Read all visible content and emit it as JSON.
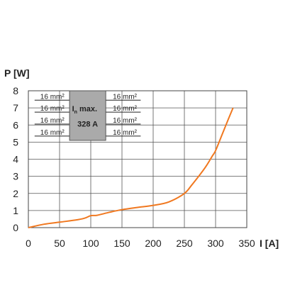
{
  "chart_data": {
    "type": "line",
    "title": "",
    "xlabel": "I [A]",
    "ylabel": "P [W]",
    "xlim": [
      0,
      350
    ],
    "ylim": [
      0,
      8
    ],
    "x_ticks": [
      0,
      50,
      100,
      150,
      200,
      250,
      300,
      350
    ],
    "y_ticks": [
      0,
      1,
      2,
      3,
      4,
      5,
      6,
      7,
      8
    ],
    "grid": true,
    "line_color": "#f07820",
    "series": [
      {
        "x": [
          0,
          25,
          50,
          75,
          90,
          100,
          110,
          130,
          150,
          175,
          200,
          225,
          250,
          262,
          275,
          285,
          295,
          300,
          310,
          320,
          328
        ],
        "y": [
          0,
          0.2,
          0.32,
          0.44,
          0.55,
          0.7,
          0.72,
          0.9,
          1.05,
          1.18,
          1.3,
          1.5,
          2.0,
          2.5,
          3.1,
          3.6,
          4.2,
          4.5,
          5.4,
          6.3,
          7.0
        ]
      }
    ],
    "inset": {
      "box_lines": [
        "max.",
        "328 A"
      ],
      "box_label_main": "I",
      "box_label_sub": "n",
      "left_wires": [
        "16 mm²",
        "16 mm²",
        "16 mm²",
        "16 mm²"
      ],
      "right_wires": [
        "16 mm²",
        "16 mm²",
        "16 mm²",
        "16 mm²"
      ],
      "box_color": "#aaaaaa"
    }
  }
}
